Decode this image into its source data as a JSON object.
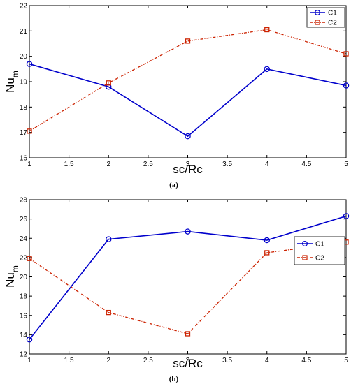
{
  "chart_data": [
    {
      "type": "line",
      "caption": "(a)",
      "xlabel": "sc/Rc",
      "ylabel": "Nu",
      "ylabel_sub": "m",
      "xlim": [
        1,
        5
      ],
      "ylim": [
        16,
        22
      ],
      "xticks": [
        "1",
        "1.5",
        "2",
        "2.5",
        "3",
        "3.5",
        "4",
        "4.5",
        "5"
      ],
      "yticks": [
        "16",
        "17",
        "18",
        "19",
        "20",
        "21",
        "22"
      ],
      "x": [
        1,
        2,
        3,
        4,
        5
      ],
      "legend_position": "top-right",
      "series": [
        {
          "name": "C1",
          "values": [
            19.7,
            18.8,
            16.85,
            19.5,
            18.85
          ],
          "color": "#0000cc",
          "marker": "circle",
          "dash": "solid"
        },
        {
          "name": "C2",
          "values": [
            17.05,
            18.95,
            20.6,
            21.05,
            20.1
          ],
          "color": "#cc2200",
          "marker": "square",
          "dash": "dashdot"
        }
      ]
    },
    {
      "type": "line",
      "caption": "(b)",
      "xlabel": "sc/Rc",
      "ylabel": "Nu",
      "ylabel_sub": "m",
      "xlim": [
        1,
        5
      ],
      "ylim": [
        12,
        28
      ],
      "xticks": [
        "1",
        "1.5",
        "2",
        "2.5",
        "3",
        "3.5",
        "4",
        "4.5",
        "5"
      ],
      "yticks": [
        "12",
        "14",
        "16",
        "18",
        "20",
        "22",
        "24",
        "26",
        "28"
      ],
      "x": [
        1,
        2,
        3,
        4,
        5
      ],
      "legend_position": "right",
      "series": [
        {
          "name": "C1",
          "values": [
            13.5,
            23.9,
            24.7,
            23.8,
            26.3
          ],
          "color": "#0000cc",
          "marker": "circle",
          "dash": "solid"
        },
        {
          "name": "C2",
          "values": [
            21.9,
            16.3,
            14.1,
            22.5,
            23.6
          ],
          "color": "#cc2200",
          "marker": "square",
          "dash": "dashdot"
        }
      ]
    }
  ]
}
